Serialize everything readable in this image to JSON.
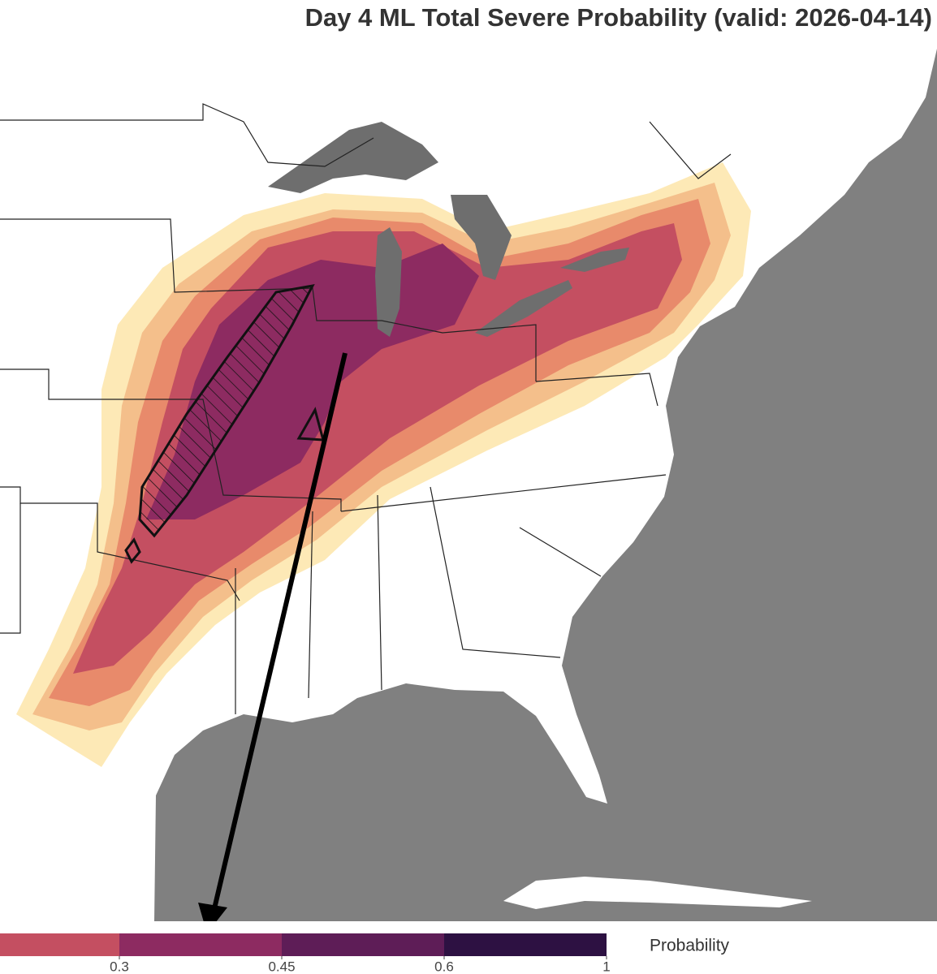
{
  "title": "Day 4 ML Total Severe Probability (valid: 2026-04-14)",
  "colorbar": {
    "label": "Probability",
    "ticks": [
      0.3,
      0.45,
      0.6,
      1
    ],
    "colors": [
      "#c44f61",
      "#8d2b61",
      "#5e1d57",
      "#2d1142"
    ]
  }
}
